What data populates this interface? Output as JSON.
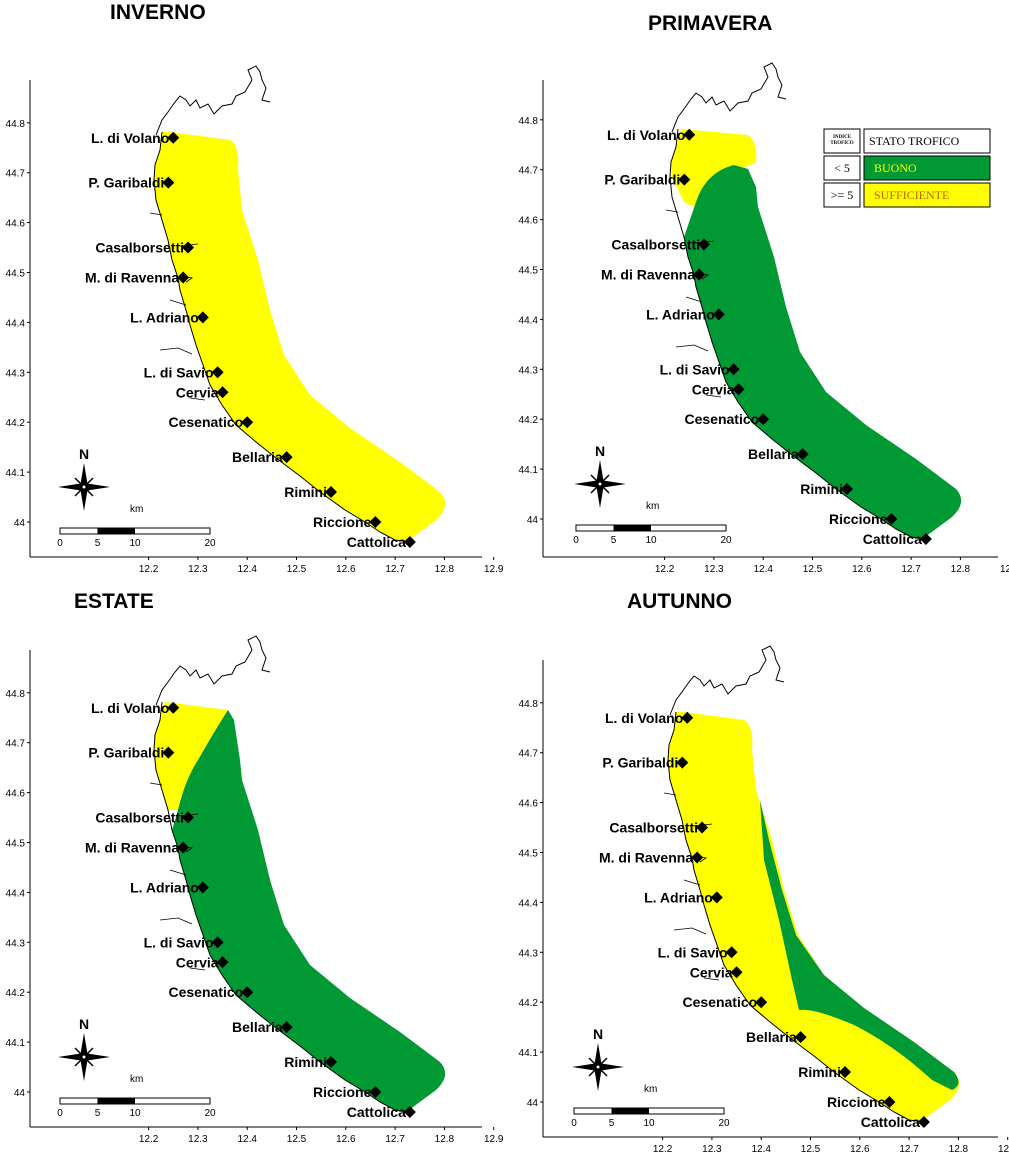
{
  "panels": [
    {
      "id": "inverno",
      "title": "INVERNO",
      "zones": [
        "sufficiente"
      ]
    },
    {
      "id": "primavera",
      "title": "PRIMAVERA",
      "zones": [
        "sufficiente-north",
        "buono"
      ]
    },
    {
      "id": "estate",
      "title": "ESTATE",
      "zones": [
        "sufficiente-north",
        "buono"
      ]
    },
    {
      "id": "autunno",
      "title": "AUTUNNO",
      "zones": [
        "sufficiente",
        "buono-offshore"
      ]
    }
  ],
  "axes": {
    "x_ticks": [
      "12.2",
      "12.3",
      "12.4",
      "12.5",
      "12.6",
      "12.7",
      "12.8",
      "12.9"
    ],
    "y_ticks": [
      "44.8",
      "44.7",
      "44.6",
      "44.5",
      "44.4",
      "44.3",
      "44.2",
      "44.1",
      "44"
    ]
  },
  "stations": [
    {
      "name": "L. di Volano",
      "lon": 12.25,
      "lat": 44.77
    },
    {
      "name": "P. Garibaldi",
      "lon": 12.24,
      "lat": 44.68
    },
    {
      "name": "Casalborsetti",
      "lon": 12.28,
      "lat": 44.55
    },
    {
      "name": "M. di Ravenna",
      "lon": 12.27,
      "lat": 44.49
    },
    {
      "name": "L. Adriano",
      "lon": 12.31,
      "lat": 44.41
    },
    {
      "name": "L. di Savio",
      "lon": 12.34,
      "lat": 44.3
    },
    {
      "name": "Cervia",
      "lon": 12.35,
      "lat": 44.26
    },
    {
      "name": "Cesenatico",
      "lon": 12.4,
      "lat": 44.2
    },
    {
      "name": "Bellaria",
      "lon": 12.48,
      "lat": 44.13
    },
    {
      "name": "Rimini",
      "lon": 12.57,
      "lat": 44.06
    },
    {
      "name": "Riccione",
      "lon": 12.66,
      "lat": 44.0
    },
    {
      "name": "Cattolica",
      "lon": 12.73,
      "lat": 43.96
    }
  ],
  "legend": {
    "header_col1": "INDICE TROFICO",
    "header_col2": "STATO TROFICO",
    "rows": [
      {
        "threshold": "< 5",
        "label": "BUONO",
        "color": "#009933"
      },
      {
        "threshold": ">= 5",
        "label": "SUFFICIENTE",
        "color": "#FFFF00"
      }
    ]
  },
  "north_label": "N",
  "scale_bar": {
    "unit": "km",
    "ticks": [
      "0",
      "5",
      "10",
      "20"
    ]
  }
}
